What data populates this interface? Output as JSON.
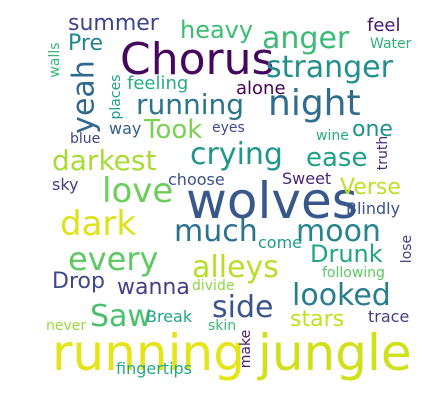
{
  "word_cloud": {
    "words": [
      {
        "text": "Chorus",
        "color": "#46085c"
      },
      {
        "text": "wolves",
        "color": "#38588c"
      },
      {
        "text": "running",
        "color": "#e5e419"
      },
      {
        "text": "jungle",
        "color": "#d0e11c"
      },
      {
        "text": "night",
        "color": "#2f6c8e"
      },
      {
        "text": "anger",
        "color": "#3bbb75"
      },
      {
        "text": "stranger",
        "color": "#21908d"
      },
      {
        "text": "running",
        "color": "#2c738e"
      },
      {
        "text": "crying",
        "color": "#1f968b"
      },
      {
        "text": "love",
        "color": "#6ccd5a"
      },
      {
        "text": "darkest",
        "color": "#a8db34"
      },
      {
        "text": "much",
        "color": "#2c728e"
      },
      {
        "text": "moon",
        "color": "#25848e"
      },
      {
        "text": "dark",
        "color": "#dde318"
      },
      {
        "text": "every",
        "color": "#5ec962"
      },
      {
        "text": "alleys",
        "color": "#b8de29"
      },
      {
        "text": "looked",
        "color": "#287d8e"
      },
      {
        "text": "Saw",
        "color": "#4ac16d"
      },
      {
        "text": "side",
        "color": "#39558c"
      },
      {
        "text": "Took",
        "color": "#7ad151"
      },
      {
        "text": "ease",
        "color": "#1fa187"
      },
      {
        "text": "Verse",
        "color": "#bddf26"
      },
      {
        "text": "Drunk",
        "color": "#21a685"
      },
      {
        "text": "stars",
        "color": "#c2df23"
      },
      {
        "text": "heavy",
        "color": "#3dbc74"
      },
      {
        "text": "summer",
        "color": "#404387"
      },
      {
        "text": "yeah",
        "color": "#31688e"
      },
      {
        "text": "Pre",
        "color": "#25858e"
      },
      {
        "text": "one",
        "color": "#21918c"
      },
      {
        "text": "feel",
        "color": "#48186a"
      },
      {
        "text": "feeling",
        "color": "#27ad81"
      },
      {
        "text": "alone",
        "color": "#440154"
      },
      {
        "text": "way",
        "color": "#365c8d"
      },
      {
        "text": "wanna",
        "color": "#423f85"
      },
      {
        "text": "Drop",
        "color": "#3e4989"
      },
      {
        "text": "Break",
        "color": "#20a486"
      },
      {
        "text": "fingertips",
        "color": "#22a884"
      },
      {
        "text": "Water",
        "color": "#2db27d"
      },
      {
        "text": "walls",
        "color": "#34b679"
      },
      {
        "text": "places",
        "color": "#1f9e89"
      },
      {
        "text": "eyes",
        "color": "#3e4c8a"
      },
      {
        "text": "blue",
        "color": "#414287"
      },
      {
        "text": "wine",
        "color": "#25ac82"
      },
      {
        "text": "truth",
        "color": "#472d7b"
      },
      {
        "text": "sky",
        "color": "#433e85"
      },
      {
        "text": "choose",
        "color": "#3c508b"
      },
      {
        "text": "Sweet",
        "color": "#472878"
      },
      {
        "text": "Blindly",
        "color": "#3b518b"
      },
      {
        "text": "come",
        "color": "#1e9b8a"
      },
      {
        "text": "lose",
        "color": "#433d84"
      },
      {
        "text": "following",
        "color": "#5cc863"
      },
      {
        "text": "divide",
        "color": "#8fd744"
      },
      {
        "text": "trace",
        "color": "#424086"
      },
      {
        "text": "never",
        "color": "#9bd93c"
      },
      {
        "text": "skin",
        "color": "#3aba76"
      },
      {
        "text": "make",
        "color": "#482071"
      }
    ]
  }
}
